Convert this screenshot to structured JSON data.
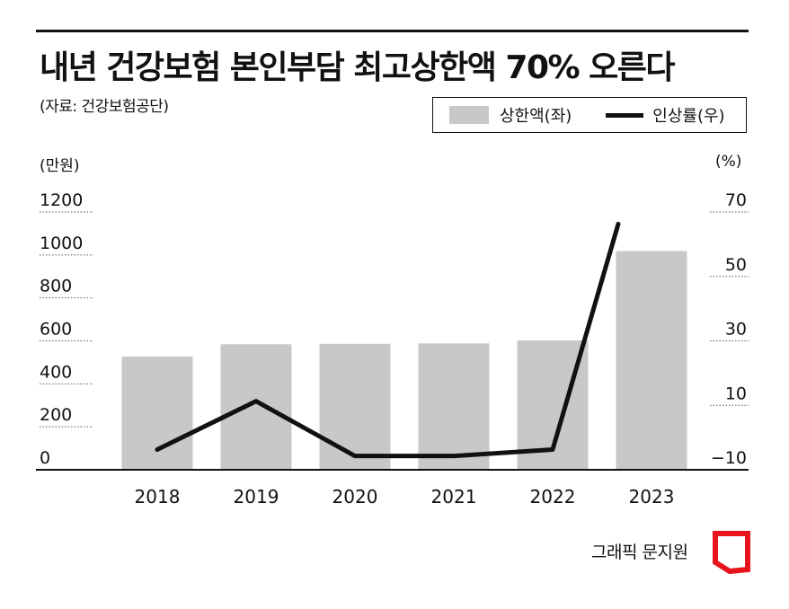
{
  "title": "내년 건강보험 본인부담 최고상한액 70% 오른다",
  "source": "(자료: 건강보험공단)",
  "legend": {
    "bar_label": "상한액(좌)",
    "line_label": "인상률(우)"
  },
  "units": {
    "left": "(만원)",
    "right": "(%)"
  },
  "credit": "그래픽 문지원",
  "colors": {
    "bar": "#c8c8c8",
    "line": "#111111",
    "logo": "#e8141c"
  },
  "chart_data": {
    "type": "bar",
    "categories": [
      "2018",
      "2019",
      "2020",
      "2021",
      "2022",
      "2023"
    ],
    "series": [
      {
        "name": "상한액(좌)",
        "type": "bar",
        "axis": "left",
        "values": [
          523,
          580,
          582,
          584,
          598,
          1014
        ]
      },
      {
        "name": "인상률(우)",
        "type": "line",
        "axis": "right",
        "values": [
          -4,
          11,
          -6,
          -6,
          -4,
          66
        ]
      }
    ],
    "left_axis": {
      "ticks": [
        0,
        200,
        400,
        600,
        800,
        1000,
        1200
      ],
      "ylim": [
        0,
        1200
      ]
    },
    "right_axis": {
      "ticks": [
        -10,
        10,
        30,
        50,
        70
      ],
      "ylim": [
        -10,
        70
      ]
    },
    "grid": "dotted tick guides"
  }
}
